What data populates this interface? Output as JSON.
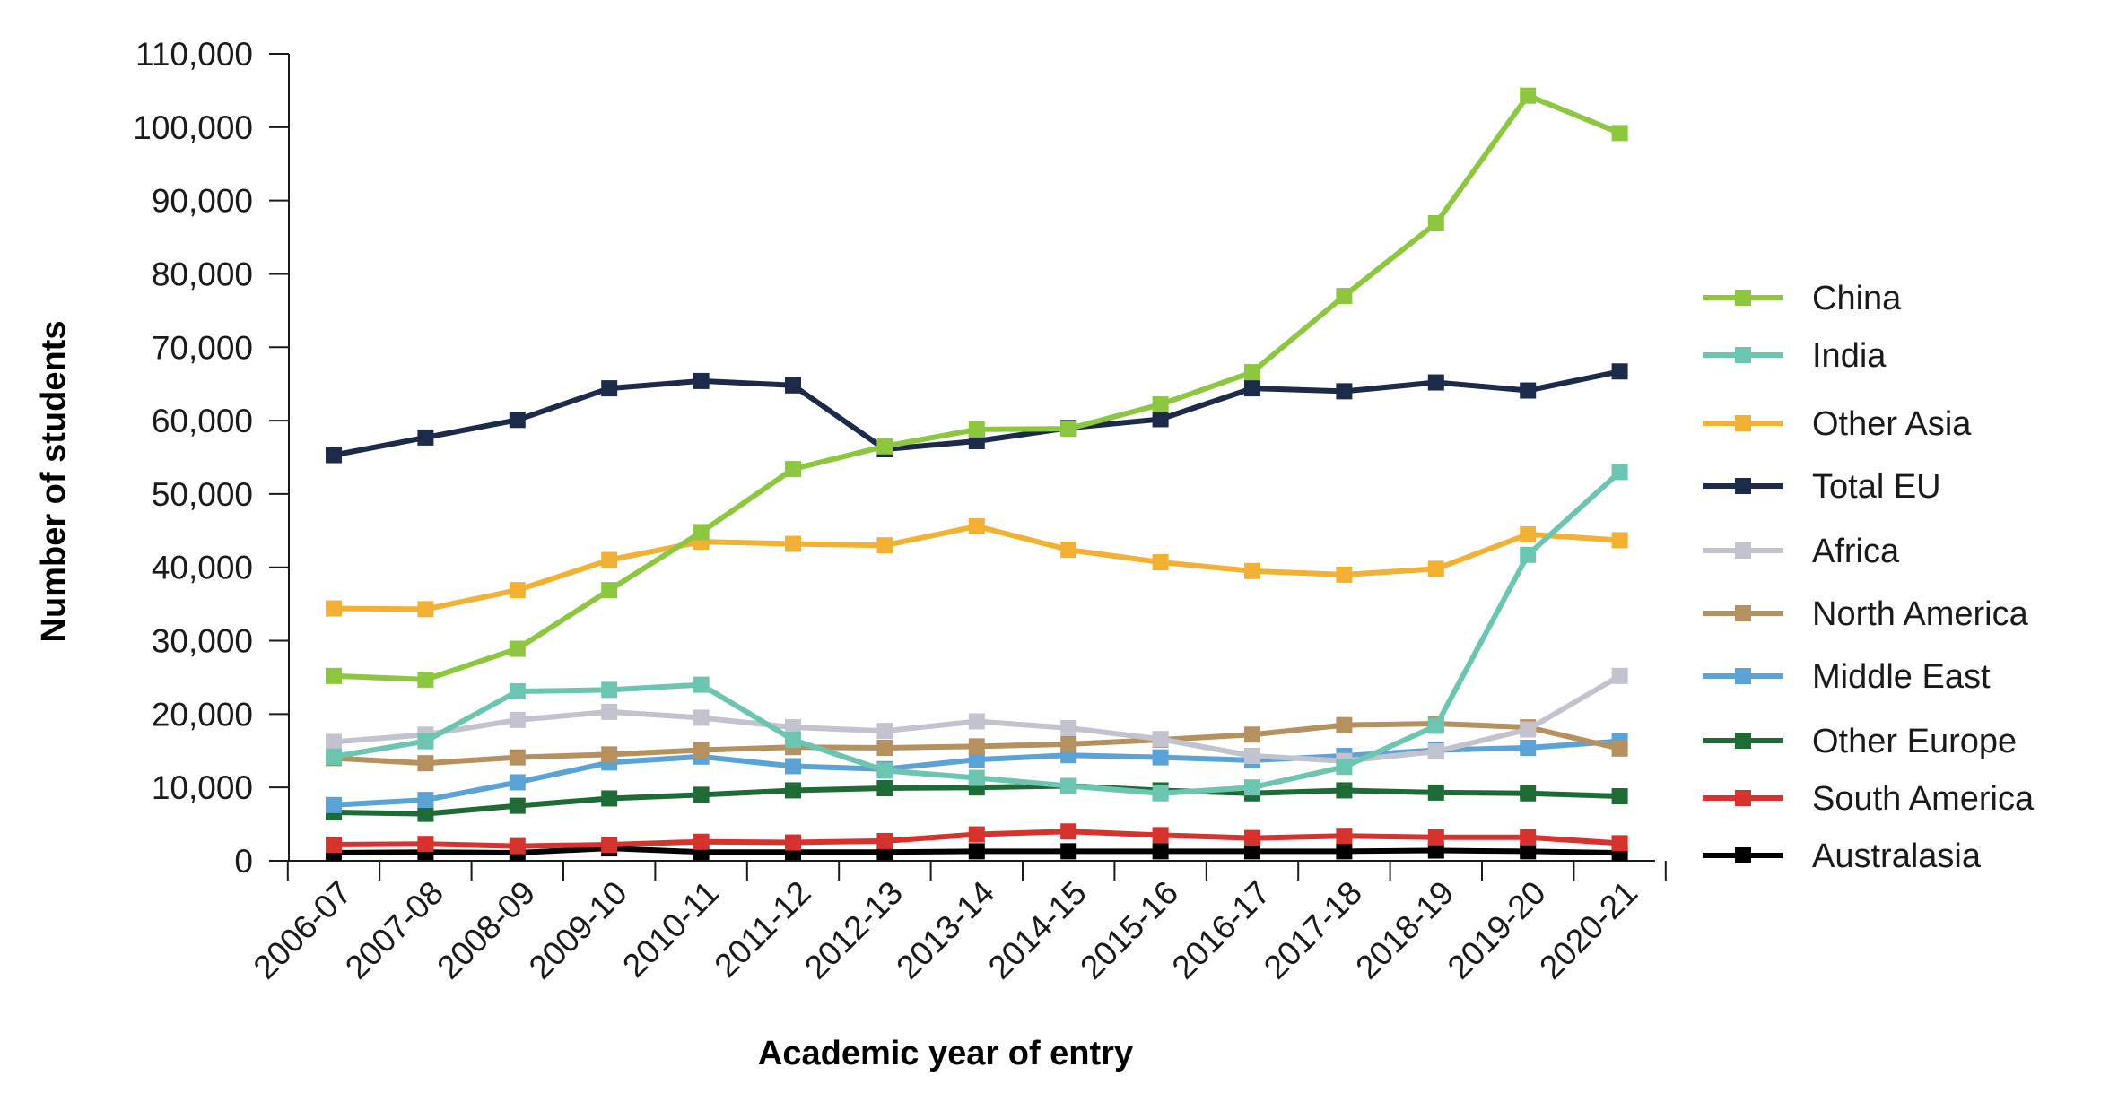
{
  "chart_data": {
    "type": "line",
    "title": "",
    "xlabel": "Academic year of entry",
    "ylabel": "Number of students",
    "ylim": [
      0,
      110000
    ],
    "ytick_values": [
      0,
      10000,
      20000,
      30000,
      40000,
      50000,
      60000,
      70000,
      80000,
      90000,
      100000,
      110000
    ],
    "ytick_labels": [
      "0",
      "10,000",
      "20,000",
      "30,000",
      "40,000",
      "50,000",
      "60,000",
      "70,000",
      "80,000",
      "90,000",
      "100,000",
      "110,000"
    ],
    "grid": false,
    "legend_position": "right",
    "categories": [
      "2006-07",
      "2007-08",
      "2008-09",
      "2009-10",
      "2010-11",
      "2011-12",
      "2012-13",
      "2013-14",
      "2014-15",
      "2015-16",
      "2016-17",
      "2017-18",
      "2018-19",
      "2019-20",
      "2020-21"
    ],
    "series": [
      {
        "name": "China",
        "color": "#8dc63f",
        "values": [
          25200,
          24700,
          28900,
          36900,
          44800,
          53400,
          56500,
          58800,
          58900,
          62200,
          66600,
          77000,
          86900,
          104300,
          99200
        ]
      },
      {
        "name": "India",
        "color": "#6cc5b0",
        "values": [
          14200,
          16300,
          23100,
          23300,
          24000,
          16500,
          12300,
          11300,
          10200,
          9200,
          10000,
          12800,
          18400,
          41700,
          53000
        ]
      },
      {
        "name": "Other Asia",
        "color": "#f2b134",
        "values": [
          34400,
          34300,
          36900,
          41000,
          43500,
          43200,
          43000,
          45600,
          42400,
          40700,
          39500,
          39000,
          39800,
          44500,
          43700
        ]
      },
      {
        "name": "Total EU",
        "color": "#1c2b4a",
        "values": [
          55300,
          57700,
          60100,
          64400,
          65400,
          64800,
          56100,
          57200,
          59000,
          60200,
          64400,
          64000,
          65200,
          64100,
          66700
        ]
      },
      {
        "name": "Africa",
        "color": "#c3c3cf",
        "values": [
          16200,
          17200,
          19200,
          20300,
          19500,
          18200,
          17700,
          19000,
          18100,
          16600,
          14300,
          13600,
          14900,
          17900,
          25200
        ]
      },
      {
        "name": "North America",
        "color": "#b5915f",
        "values": [
          14000,
          13300,
          14100,
          14500,
          15100,
          15500,
          15400,
          15600,
          15900,
          16500,
          17200,
          18500,
          18700,
          18200,
          15300
        ]
      },
      {
        "name": "Middle East",
        "color": "#5ba3d6",
        "values": [
          7600,
          8300,
          10700,
          13400,
          14200,
          12900,
          12500,
          13800,
          14400,
          14100,
          13700,
          14300,
          15100,
          15400,
          16300
        ]
      },
      {
        "name": "Other Europe",
        "color": "#1e6b35",
        "values": [
          6600,
          6400,
          7500,
          8500,
          9000,
          9600,
          9900,
          10000,
          10200,
          9600,
          9200,
          9600,
          9300,
          9200,
          8800
        ]
      },
      {
        "name": "South America",
        "color": "#d6332e",
        "values": [
          2200,
          2300,
          2000,
          2200,
          2600,
          2500,
          2700,
          3600,
          4000,
          3500,
          3100,
          3400,
          3200,
          3200,
          2400
        ]
      },
      {
        "name": "Australasia",
        "color": "#000000",
        "values": [
          1100,
          1200,
          1100,
          1700,
          1200,
          1200,
          1200,
          1300,
          1300,
          1300,
          1300,
          1300,
          1400,
          1300,
          1100
        ]
      }
    ]
  }
}
